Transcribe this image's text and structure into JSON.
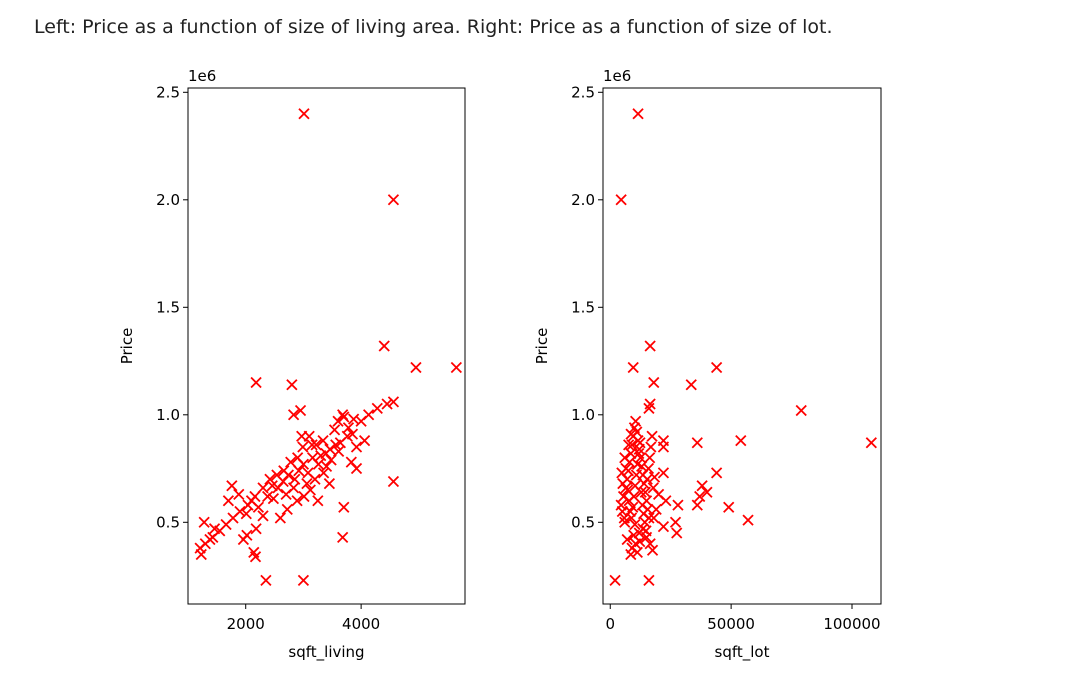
{
  "caption": "Left: Price as a function of size of living area. Right: Price as a function of size of lot.",
  "marker_color": "#ff0000",
  "chart_data": [
    {
      "type": "scatter",
      "marker": "x",
      "xlabel": "sqft_living",
      "ylabel": "Price",
      "y_offset_label": "1e6",
      "xlim": [
        1000,
        5800
      ],
      "ylim": [
        0.12,
        2.52
      ],
      "xticks": [
        2000,
        4000
      ],
      "xtick_labels": [
        "2000",
        "4000"
      ],
      "yticks": [
        0.5,
        1.0,
        1.5,
        2.0,
        2.5
      ],
      "ytick_labels": [
        "0.5",
        "1.0",
        "1.5",
        "2.0",
        "2.5"
      ],
      "points": [
        [
          3010,
          2.4
        ],
        [
          4560,
          2.0
        ],
        [
          4400,
          1.32
        ],
        [
          4950,
          1.22
        ],
        [
          5650,
          1.22
        ],
        [
          2180,
          1.15
        ],
        [
          2800,
          1.14
        ],
        [
          2830,
          1.0
        ],
        [
          2950,
          1.02
        ],
        [
          3680,
          1.0
        ],
        [
          3600,
          0.97
        ],
        [
          3700,
          0.99
        ],
        [
          3780,
          0.94
        ],
        [
          3870,
          0.98
        ],
        [
          4000,
          0.97
        ],
        [
          4130,
          1.0
        ],
        [
          4280,
          1.03
        ],
        [
          4450,
          1.05
        ],
        [
          4560,
          1.06
        ],
        [
          4060,
          0.88
        ],
        [
          3920,
          0.85
        ],
        [
          3760,
          0.9
        ],
        [
          3640,
          0.87
        ],
        [
          3540,
          0.93
        ],
        [
          3460,
          0.84
        ],
        [
          3340,
          0.88
        ],
        [
          3220,
          0.86
        ],
        [
          3100,
          0.9
        ],
        [
          2990,
          0.85
        ],
        [
          2900,
          0.8
        ],
        [
          2780,
          0.78
        ],
        [
          2660,
          0.74
        ],
        [
          2540,
          0.72
        ],
        [
          2420,
          0.7
        ],
        [
          2300,
          0.66
        ],
        [
          2160,
          0.62
        ],
        [
          2040,
          0.58
        ],
        [
          1900,
          0.55
        ],
        [
          1780,
          0.52
        ],
        [
          1660,
          0.49
        ],
        [
          1550,
          0.46
        ],
        [
          1430,
          0.43
        ],
        [
          1300,
          0.4
        ],
        [
          1210,
          0.38
        ],
        [
          1230,
          0.35
        ],
        [
          1280,
          0.5
        ],
        [
          1380,
          0.42
        ],
        [
          1460,
          0.47
        ],
        [
          1700,
          0.6
        ],
        [
          1760,
          0.67
        ],
        [
          1880,
          0.63
        ],
        [
          2010,
          0.54
        ],
        [
          2100,
          0.6
        ],
        [
          2220,
          0.57
        ],
        [
          2380,
          0.62
        ],
        [
          2460,
          0.67
        ],
        [
          2560,
          0.66
        ],
        [
          2650,
          0.69
        ],
        [
          2740,
          0.72
        ],
        [
          2850,
          0.7
        ],
        [
          2920,
          0.74
        ],
        [
          3000,
          0.77
        ],
        [
          3080,
          0.73
        ],
        [
          3160,
          0.8
        ],
        [
          3260,
          0.77
        ],
        [
          3390,
          0.82
        ],
        [
          3480,
          0.79
        ],
        [
          3610,
          0.83
        ],
        [
          3830,
          0.78
        ],
        [
          3920,
          0.75
        ],
        [
          2890,
          0.6
        ],
        [
          3010,
          0.62
        ],
        [
          3120,
          0.65
        ],
        [
          3200,
          0.7
        ],
        [
          3350,
          0.73
        ],
        [
          2600,
          0.52
        ],
        [
          2720,
          0.56
        ],
        [
          2300,
          0.53
        ],
        [
          2180,
          0.47
        ],
        [
          2020,
          0.44
        ],
        [
          2140,
          0.36
        ],
        [
          2170,
          0.34
        ],
        [
          1960,
          0.42
        ],
        [
          3250,
          0.6
        ],
        [
          3450,
          0.68
        ],
        [
          3700,
          0.57
        ],
        [
          3680,
          0.43
        ],
        [
          4560,
          0.69
        ],
        [
          2350,
          0.23
        ],
        [
          3000,
          0.23
        ],
        [
          2480,
          0.61
        ],
        [
          2700,
          0.63
        ],
        [
          2830,
          0.66
        ],
        [
          3060,
          0.68
        ],
        [
          3300,
          0.81
        ],
        [
          3560,
          0.86
        ],
        [
          3850,
          0.91
        ],
        [
          3150,
          0.86
        ],
        [
          2970,
          0.9
        ],
        [
          3400,
          0.76
        ]
      ]
    },
    {
      "type": "scatter",
      "marker": "x",
      "xlabel": "sqft_lot",
      "ylabel": "Price",
      "y_offset_label": "1e6",
      "xlim": [
        -3000,
        112000
      ],
      "ylim": [
        0.12,
        2.52
      ],
      "xticks": [
        0,
        50000,
        100000
      ],
      "xtick_labels": [
        "0",
        "50000",
        "100000"
      ],
      "yticks": [
        0.5,
        1.0,
        1.5,
        2.0,
        2.5
      ],
      "ytick_labels": [
        "0.5",
        "1.0",
        "1.5",
        "2.0",
        "2.5"
      ],
      "points": [
        [
          11500,
          2.4
        ],
        [
          4500,
          2.0
        ],
        [
          16500,
          1.32
        ],
        [
          9500,
          1.22
        ],
        [
          44000,
          1.22
        ],
        [
          18000,
          1.15
        ],
        [
          33500,
          1.14
        ],
        [
          16500,
          1.05
        ],
        [
          16000,
          1.03
        ],
        [
          79000,
          1.02
        ],
        [
          108000,
          0.87
        ],
        [
          54000,
          0.88
        ],
        [
          36000,
          0.87
        ],
        [
          22000,
          0.88
        ],
        [
          22000,
          0.85
        ],
        [
          44000,
          0.73
        ],
        [
          38000,
          0.67
        ],
        [
          40000,
          0.64
        ],
        [
          37000,
          0.62
        ],
        [
          36000,
          0.58
        ],
        [
          49000,
          0.57
        ],
        [
          57000,
          0.51
        ],
        [
          28000,
          0.58
        ],
        [
          27000,
          0.5
        ],
        [
          27500,
          0.45
        ],
        [
          22000,
          0.73
        ],
        [
          23000,
          0.6
        ],
        [
          20000,
          0.63
        ],
        [
          19000,
          0.56
        ],
        [
          18000,
          0.52
        ],
        [
          22000,
          0.48
        ],
        [
          16000,
          0.23
        ],
        [
          2000,
          0.23
        ],
        [
          7000,
          0.42
        ],
        [
          8500,
          0.35
        ],
        [
          9000,
          0.38
        ],
        [
          10500,
          0.4
        ],
        [
          12000,
          0.45
        ],
        [
          13500,
          0.47
        ],
        [
          15000,
          0.43
        ],
        [
          16500,
          0.4
        ],
        [
          17500,
          0.37
        ],
        [
          6000,
          0.5
        ],
        [
          5000,
          0.55
        ],
        [
          4500,
          0.58
        ],
        [
          5500,
          0.62
        ],
        [
          6500,
          0.66
        ],
        [
          7000,
          0.7
        ],
        [
          7500,
          0.74
        ],
        [
          8000,
          0.78
        ],
        [
          8500,
          0.82
        ],
        [
          9000,
          0.86
        ],
        [
          9500,
          0.9
        ],
        [
          10000,
          0.94
        ],
        [
          10500,
          0.97
        ],
        [
          11000,
          0.92
        ],
        [
          11500,
          0.88
        ],
        [
          12000,
          0.84
        ],
        [
          12500,
          0.8
        ],
        [
          13000,
          0.76
        ],
        [
          13500,
          0.72
        ],
        [
          14000,
          0.68
        ],
        [
          14500,
          0.64
        ],
        [
          15000,
          0.6
        ],
        [
          15500,
          0.56
        ],
        [
          16000,
          0.52
        ],
        [
          6000,
          0.8
        ],
        [
          6500,
          0.75
        ],
        [
          7200,
          0.65
        ],
        [
          7800,
          0.6
        ],
        [
          8300,
          0.55
        ],
        [
          8800,
          0.52
        ],
        [
          9300,
          0.57
        ],
        [
          9800,
          0.62
        ],
        [
          10300,
          0.67
        ],
        [
          10800,
          0.72
        ],
        [
          11300,
          0.77
        ],
        [
          11800,
          0.82
        ],
        [
          12300,
          0.87
        ],
        [
          12800,
          0.64
        ],
        [
          13300,
          0.58
        ],
        [
          13800,
          0.54
        ],
        [
          14300,
          0.5
        ],
        [
          14800,
          0.46
        ],
        [
          15300,
          0.7
        ],
        [
          15800,
          0.75
        ],
        [
          16300,
          0.8
        ],
        [
          16800,
          0.85
        ],
        [
          17300,
          0.9
        ],
        [
          17800,
          0.66
        ],
        [
          18300,
          0.71
        ],
        [
          9700,
          0.44
        ],
        [
          10200,
          0.49
        ],
        [
          11200,
          0.36
        ],
        [
          12200,
          0.41
        ],
        [
          7600,
          0.86
        ],
        [
          8600,
          0.91
        ],
        [
          5200,
          0.68
        ],
        [
          4800,
          0.73
        ],
        [
          5800,
          0.52
        ]
      ]
    }
  ]
}
